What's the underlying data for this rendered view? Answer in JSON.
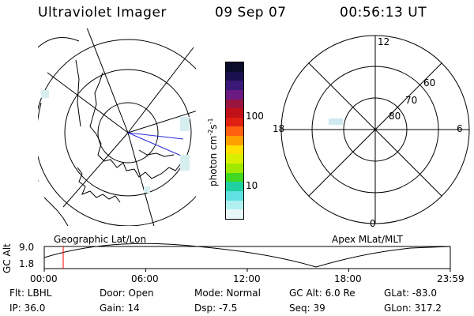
{
  "header": {
    "title": "Ultraviolet Imager",
    "date": "09 Sep 07",
    "time": "00:56:13 UT"
  },
  "colorbar": {
    "unit": "photon cm",
    "exp1": "-2",
    "s": "s",
    "exp2": "-1",
    "ticks": [
      "100",
      "10"
    ],
    "colors": [
      "#0b0b2a",
      "#1a1050",
      "#3a1878",
      "#6a1a80",
      "#9a1440",
      "#c01018",
      "#e02010",
      "#ff6010",
      "#ffa000",
      "#ffe000",
      "#d8f000",
      "#a0e800",
      "#40d820",
      "#20d0a0",
      "#60e0e0",
      "#b0f0f0",
      "#e8f8f8"
    ]
  },
  "polar": {
    "lat_labels": [
      "60",
      "70",
      "80"
    ],
    "mlt_labels": {
      "top": "12",
      "left": "18",
      "right": "6",
      "bottom": "0"
    }
  },
  "panel_labels": {
    "left": "Geographic Lat/Lon",
    "right": "Apex MLat/MLT"
  },
  "timeline": {
    "ylabel": "GC Alt",
    "ymax": "9.0",
    "ymin": "1.8",
    "ticks": [
      "00:00",
      "06:00",
      "12:00",
      "18:00",
      "23:59"
    ],
    "marker_color": "#ff0000"
  },
  "info": {
    "flt": "Flt: LBHL",
    "ip": "IP: 36.0",
    "door": "Door: Open",
    "gain": "Gain: 14",
    "mode": "Mode: Normal",
    "dsp": "Dsp:   -7.5",
    "gcalt": "GC Alt: 6.0 Re",
    "seq": "Seq: 39",
    "glat": "GLat: -83.0",
    "glon": "GLon: 317.2"
  }
}
